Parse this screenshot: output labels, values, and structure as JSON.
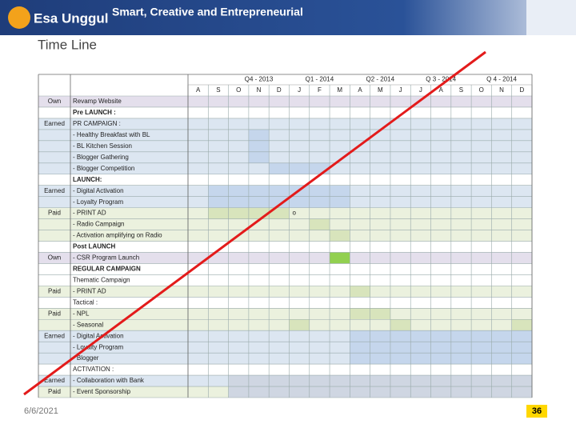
{
  "header": {
    "brand": "Esa Unggul",
    "tagline": "Smart, Creative and Entrepreneurial"
  },
  "title": "Time Line",
  "table": {
    "quarters": [
      "Q4 - 2013",
      "Q1 - 2014",
      "Q2 - 2014",
      "Q 3 - 2014",
      "Q 4 - 2014"
    ],
    "months": [
      "A",
      "S",
      "O",
      "N",
      "D",
      "J",
      "F",
      "M",
      "A",
      "M",
      "J",
      "J",
      "A",
      "S",
      "O",
      "N",
      "D"
    ],
    "rows": [
      {
        "channel": "Own",
        "activity": "Revamp Website"
      },
      {
        "activity": "Pre LAUNCH :"
      },
      {
        "channel": "Earned",
        "activity": "PR CAMPAIGN :"
      },
      {
        "activity": "- Healthy Breakfast with BL"
      },
      {
        "activity": "- BL Kitchen Session"
      },
      {
        "activity": "- Blogger Gathering"
      },
      {
        "activity": "- Blogger Competition"
      },
      {
        "activity": "LAUNCH:"
      },
      {
        "channel": "Earned",
        "activity": "- Digital Activation"
      },
      {
        "activity": "- Loyalty Program"
      },
      {
        "channel": "Paid",
        "activity": "- PRINT AD",
        "marker": "o"
      },
      {
        "activity": "- Radio Campaign"
      },
      {
        "activity": "- Activation amplifying on Radio"
      },
      {
        "activity": "Post LAUNCH"
      },
      {
        "channel": "Own",
        "activity": "- CSR Program Launch"
      },
      {
        "activity": "REGULAR CAMPAIGN"
      },
      {
        "activity": "Thematic Campaign"
      },
      {
        "channel": "Paid",
        "activity": "- PRINT AD"
      },
      {
        "activity": "Tactical :"
      },
      {
        "channel": "Paid",
        "activity": "- NPL"
      },
      {
        "activity": "- Seasonal"
      },
      {
        "channel": "Earned",
        "activity": "- Digital Activation"
      },
      {
        "activity": "- Loyalty Program"
      },
      {
        "activity": "- Blogger"
      },
      {
        "activity": "ACTIVATION :"
      },
      {
        "channel": "Earned",
        "activity": "- Collaboration with Bank"
      },
      {
        "channel": "Paid",
        "activity": "- Event Sponsorship"
      }
    ]
  },
  "footer": {
    "date": "6/6/2021",
    "page": "36"
  }
}
